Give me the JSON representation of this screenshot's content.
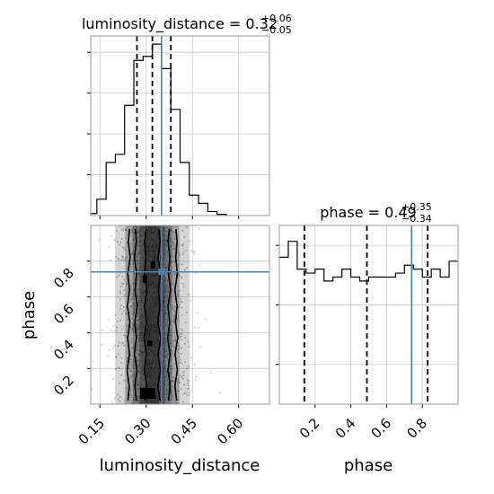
{
  "chart_data": [
    {
      "type": "histogram",
      "panel": "luminosity_distance marginal",
      "title": {
        "main": "luminosity_distance = 0.32",
        "plus": "+0.06",
        "minus": "−0.05"
      },
      "xlim": [
        0.12,
        0.7
      ],
      "bins": [
        {
          "x0": 0.12,
          "x1": 0.14,
          "count": 0.5
        },
        {
          "x0": 0.14,
          "x1": 0.17,
          "count": 4
        },
        {
          "x0": 0.17,
          "x1": 0.2,
          "count": 13
        },
        {
          "x0": 0.2,
          "x1": 0.23,
          "count": 15
        },
        {
          "x0": 0.23,
          "x1": 0.26,
          "count": 27
        },
        {
          "x0": 0.26,
          "x1": 0.29,
          "count": 38
        },
        {
          "x0": 0.29,
          "x1": 0.32,
          "count": 39
        },
        {
          "x0": 0.32,
          "x1": 0.35,
          "count": 42
        },
        {
          "x0": 0.35,
          "x1": 0.38,
          "count": 36
        },
        {
          "x0": 0.38,
          "x1": 0.41,
          "count": 26
        },
        {
          "x0": 0.41,
          "x1": 0.44,
          "count": 13
        },
        {
          "x0": 0.44,
          "x1": 0.47,
          "count": 5
        },
        {
          "x0": 0.47,
          "x1": 0.5,
          "count": 3
        },
        {
          "x0": 0.5,
          "x1": 0.53,
          "count": 1
        },
        {
          "x0": 0.53,
          "x1": 0.56,
          "count": 0.3
        }
      ],
      "ymax": 44,
      "quantiles": [
        0.27,
        0.32,
        0.38
      ],
      "truth": 0.35,
      "xticks": [
        0.15,
        0.3,
        0.45,
        0.6
      ],
      "ytick_values": [
        10,
        20,
        30,
        40
      ]
    },
    {
      "type": "histogram",
      "panel": "phase marginal",
      "title": {
        "main": "phase = 0.49",
        "plus": "+0.35",
        "minus": "−0.34"
      },
      "xlim": [
        0.0,
        1.0
      ],
      "bins": [
        {
          "x0": 0.0,
          "x1": 0.05,
          "count": 37
        },
        {
          "x0": 0.05,
          "x1": 0.1,
          "count": 41
        },
        {
          "x0": 0.1,
          "x1": 0.15,
          "count": 34
        },
        {
          "x0": 0.15,
          "x1": 0.2,
          "count": 33
        },
        {
          "x0": 0.2,
          "x1": 0.25,
          "count": 34
        },
        {
          "x0": 0.25,
          "x1": 0.3,
          "count": 31
        },
        {
          "x0": 0.3,
          "x1": 0.35,
          "count": 32
        },
        {
          "x0": 0.35,
          "x1": 0.4,
          "count": 34
        },
        {
          "x0": 0.4,
          "x1": 0.45,
          "count": 32
        },
        {
          "x0": 0.45,
          "x1": 0.5,
          "count": 31
        },
        {
          "x0": 0.5,
          "x1": 0.55,
          "count": 32
        },
        {
          "x0": 0.55,
          "x1": 0.6,
          "count": 32
        },
        {
          "x0": 0.6,
          "x1": 0.65,
          "count": 32
        },
        {
          "x0": 0.65,
          "x1": 0.7,
          "count": 33
        },
        {
          "x0": 0.7,
          "x1": 0.75,
          "count": 35
        },
        {
          "x0": 0.75,
          "x1": 0.8,
          "count": 34
        },
        {
          "x0": 0.8,
          "x1": 0.85,
          "count": 32
        },
        {
          "x0": 0.85,
          "x1": 0.9,
          "count": 34
        },
        {
          "x0": 0.9,
          "x1": 0.95,
          "count": 32
        },
        {
          "x0": 0.95,
          "x1": 1.0,
          "count": 36
        }
      ],
      "ymax": 45,
      "quantiles": [
        0.14,
        0.49,
        0.83
      ],
      "truth": 0.74,
      "xticks": [
        0.2,
        0.4,
        0.6,
        0.8
      ],
      "ytick_values": [
        10,
        25,
        40
      ],
      "xlabel": "phase"
    },
    {
      "type": "scatter",
      "panel": "joint posterior (2D density with contours)",
      "xlim": [
        0.12,
        0.7
      ],
      "ylim": [
        0.0,
        1.0
      ],
      "xticks": [
        0.15,
        0.3,
        0.45,
        0.6
      ],
      "yticks": [
        0.2,
        0.4,
        0.6,
        0.8
      ],
      "xlabel": "luminosity_distance",
      "ylabel": "phase",
      "truth": {
        "x": 0.35,
        "y": 0.74
      },
      "density_column_center": 0.32,
      "density_column_sigma": 0.055,
      "contours": [
        {
          "x": [
            0.241,
            0.245,
            0.238,
            0.246,
            0.24,
            0.247,
            0.239,
            0.246,
            0.24,
            0.248,
            0.242,
            0.246
          ],
          "y": [
            0.02,
            0.1,
            0.19,
            0.28,
            0.37,
            0.46,
            0.55,
            0.64,
            0.73,
            0.82,
            0.91,
            0.98
          ]
        },
        {
          "x": [
            0.399,
            0.393,
            0.401,
            0.394,
            0.402,
            0.395,
            0.4,
            0.393,
            0.401,
            0.396,
            0.4,
            0.397
          ],
          "y": [
            0.02,
            0.1,
            0.19,
            0.28,
            0.37,
            0.46,
            0.55,
            0.64,
            0.73,
            0.82,
            0.91,
            0.98
          ]
        },
        {
          "x": [
            0.268,
            0.263,
            0.27,
            0.262,
            0.268,
            0.263,
            0.271,
            0.264,
            0.269,
            0.262,
            0.268,
            0.265
          ],
          "y": [
            0.02,
            0.1,
            0.19,
            0.28,
            0.37,
            0.46,
            0.55,
            0.64,
            0.73,
            0.82,
            0.91,
            0.98
          ]
        },
        {
          "x": [
            0.372,
            0.378,
            0.371,
            0.377,
            0.37,
            0.376,
            0.371,
            0.379,
            0.372,
            0.377,
            0.371,
            0.375
          ],
          "y": [
            0.02,
            0.1,
            0.19,
            0.28,
            0.37,
            0.46,
            0.55,
            0.64,
            0.73,
            0.82,
            0.91,
            0.98
          ]
        },
        {
          "x": [
            0.295,
            0.302,
            0.294,
            0.3,
            0.293,
            0.301,
            0.295,
            0.302,
            0.294,
            0.299,
            0.295,
            0.3
          ],
          "y": [
            0.02,
            0.1,
            0.19,
            0.28,
            0.37,
            0.46,
            0.55,
            0.64,
            0.73,
            0.82,
            0.91,
            0.98
          ]
        },
        {
          "x": [
            0.345,
            0.338,
            0.346,
            0.339,
            0.347,
            0.338,
            0.344,
            0.34,
            0.346,
            0.339,
            0.345,
            0.341
          ],
          "y": [
            0.02,
            0.1,
            0.19,
            0.28,
            0.37,
            0.46,
            0.55,
            0.64,
            0.73,
            0.82,
            0.91,
            0.98
          ]
        }
      ],
      "hotspots": [
        {
          "x": 0.305,
          "y": 0.06,
          "w": 0.05,
          "h": 0.06
        },
        {
          "x": 0.312,
          "y": 0.34,
          "w": 0.015,
          "h": 0.03
        },
        {
          "x": 0.296,
          "y": 0.7,
          "w": 0.015,
          "h": 0.04
        },
        {
          "x": 0.322,
          "y": 0.78,
          "w": 0.015,
          "h": 0.04
        }
      ]
    }
  ],
  "colors": {
    "truth": "#4682b4",
    "hist_line": "#000000",
    "quantile": "#000000",
    "contour": "#000000",
    "density_dark": "#111111",
    "scatter": "#9a9a9a"
  }
}
